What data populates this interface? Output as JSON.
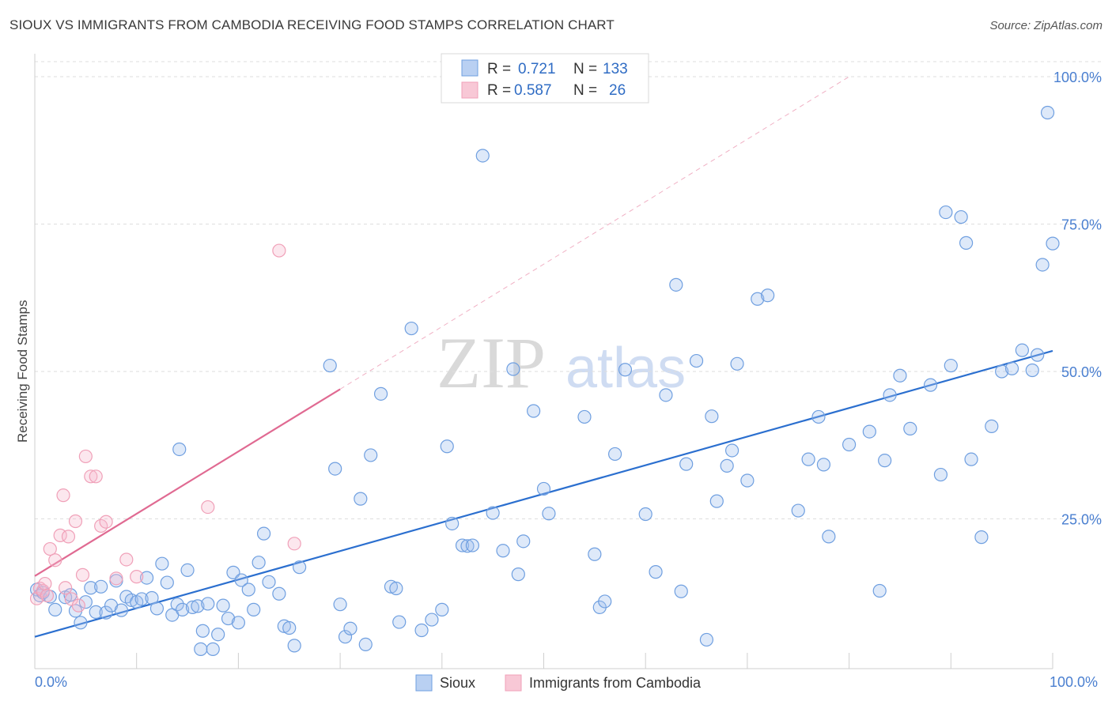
{
  "title": "SIOUX VS IMMIGRANTS FROM CAMBODIA RECEIVING FOOD STAMPS CORRELATION CHART",
  "source": "Source: ZipAtlas.com",
  "watermark": {
    "zip": "ZIP",
    "atlas": "atlas"
  },
  "legend_top": {
    "rows": [
      {
        "r_label": "R =",
        "r_value": "0.721",
        "n_label": "N =",
        "n_value": "133"
      },
      {
        "r_label": "R =",
        "r_value": "0.587",
        "n_label": "N =",
        "n_value": "26"
      }
    ]
  },
  "chart_data": {
    "type": "scatter",
    "title": "SIOUX VS IMMIGRANTS FROM CAMBODIA RECEIVING FOOD STAMPS CORRELATION CHART",
    "xlabel": "",
    "ylabel": "Receiving Food Stamps",
    "xlim": [
      0,
      100
    ],
    "ylim": [
      0,
      100
    ],
    "x_tick_labels": [
      {
        "v": 0,
        "label": "0.0%"
      },
      {
        "v": 100,
        "label": "100.0%"
      }
    ],
    "y_tick_labels": [
      {
        "v": 25,
        "label": "25.0%"
      },
      {
        "v": 50,
        "label": "50.0%"
      },
      {
        "v": 75,
        "label": "75.0%"
      },
      {
        "v": 100,
        "label": "100.0%"
      }
    ],
    "grid": "horizontal dashed",
    "legend_position": "bottom",
    "colors": {
      "sioux": "#6f9fe0",
      "cambodia": "#f0a0b8",
      "sioux_line": "#2b6fcf",
      "cambodia_line": "#e06a92"
    },
    "series": [
      {
        "name": "Sioux",
        "trend": {
          "x0": 0,
          "y0": 5,
          "x1": 100,
          "y1": 53.5
        },
        "points": [
          [
            0.2,
            13
          ],
          [
            0.5,
            12
          ],
          [
            0.8,
            12.5
          ],
          [
            1.5,
            11.8
          ],
          [
            2,
            9.6
          ],
          [
            3,
            11.7
          ],
          [
            3.5,
            12.1
          ],
          [
            4,
            9.4
          ],
          [
            4.5,
            7.4
          ],
          [
            5,
            10.9
          ],
          [
            5.5,
            13.3
          ],
          [
            6,
            9.2
          ],
          [
            6.5,
            13.5
          ],
          [
            7,
            9.1
          ],
          [
            7.5,
            10.3
          ],
          [
            8,
            14.5
          ],
          [
            8.5,
            9.5
          ],
          [
            9,
            11.8
          ],
          [
            9.5,
            11.2
          ],
          [
            10,
            10.9
          ],
          [
            10.5,
            11.4
          ],
          [
            11,
            15
          ],
          [
            11.5,
            11.6
          ],
          [
            12,
            9.8
          ],
          [
            12.5,
            17.4
          ],
          [
            13,
            14.2
          ],
          [
            13.5,
            8.7
          ],
          [
            14,
            10.5
          ],
          [
            14.5,
            9.6
          ],
          [
            14.2,
            36.8
          ],
          [
            15,
            16.3
          ],
          [
            15.5,
            10.0
          ],
          [
            16,
            10.2
          ],
          [
            16.5,
            6.0
          ],
          [
            16.3,
            2.9
          ],
          [
            17,
            10.6
          ],
          [
            17.5,
            2.9
          ],
          [
            18,
            5.4
          ],
          [
            18.5,
            10.3
          ],
          [
            19,
            8.1
          ],
          [
            19.5,
            15.9
          ],
          [
            20,
            7.4
          ],
          [
            20.3,
            14.6
          ],
          [
            21,
            13.0
          ],
          [
            21.5,
            9.6
          ],
          [
            22,
            17.6
          ],
          [
            22.5,
            22.5
          ],
          [
            23,
            14.3
          ],
          [
            24,
            12.3
          ],
          [
            24.5,
            6.8
          ],
          [
            25,
            6.5
          ],
          [
            25.5,
            3.5
          ],
          [
            26,
            16.8
          ],
          [
            29,
            51.0
          ],
          [
            29.5,
            33.5
          ],
          [
            30,
            10.5
          ],
          [
            30.5,
            5.0
          ],
          [
            31,
            6.4
          ],
          [
            32,
            28.4
          ],
          [
            32.5,
            3.7
          ],
          [
            33,
            35.8
          ],
          [
            34,
            46.2
          ],
          [
            35,
            13.5
          ],
          [
            35.5,
            13.2
          ],
          [
            35.8,
            7.5
          ],
          [
            37,
            57.3
          ],
          [
            38,
            6.1
          ],
          [
            39,
            7.9
          ],
          [
            40,
            9.6
          ],
          [
            40.5,
            37.3
          ],
          [
            41,
            24.2
          ],
          [
            42,
            20.5
          ],
          [
            42.5,
            20.4
          ],
          [
            43,
            20.5
          ],
          [
            44,
            86.6
          ],
          [
            45,
            26.0
          ],
          [
            46,
            19.6
          ],
          [
            47,
            50.4
          ],
          [
            47.5,
            15.6
          ],
          [
            48,
            21.2
          ],
          [
            49,
            43.3
          ],
          [
            50,
            30.1
          ],
          [
            50.5,
            25.9
          ],
          [
            54,
            42.3
          ],
          [
            55,
            19.0
          ],
          [
            55.5,
            10.0
          ],
          [
            56,
            11.0
          ],
          [
            57,
            36.0
          ],
          [
            58,
            50.3
          ],
          [
            60,
            25.8
          ],
          [
            61,
            16.0
          ],
          [
            62,
            46.0
          ],
          [
            63,
            64.7
          ],
          [
            63.5,
            12.7
          ],
          [
            64,
            34.3
          ],
          [
            65,
            51.8
          ],
          [
            66,
            4.5
          ],
          [
            66.5,
            42.4
          ],
          [
            67,
            28.0
          ],
          [
            68,
            34.0
          ],
          [
            68.5,
            36.6
          ],
          [
            69,
            51.3
          ],
          [
            70,
            31.5
          ],
          [
            71,
            62.3
          ],
          [
            72,
            62.9
          ],
          [
            75,
            26.4
          ],
          [
            76,
            35.1
          ],
          [
            77,
            42.3
          ],
          [
            77.5,
            34.2
          ],
          [
            78,
            22.0
          ],
          [
            80,
            37.6
          ],
          [
            82,
            39.8
          ],
          [
            83,
            12.8
          ],
          [
            83.5,
            34.9
          ],
          [
            84,
            46.0
          ],
          [
            85,
            49.3
          ],
          [
            86,
            40.3
          ],
          [
            88,
            47.7
          ],
          [
            89,
            32.5
          ],
          [
            89.5,
            77.0
          ],
          [
            90,
            51.0
          ],
          [
            91,
            76.2
          ],
          [
            91.5,
            71.8
          ],
          [
            92,
            35.1
          ],
          [
            93,
            21.9
          ],
          [
            94,
            40.7
          ],
          [
            95,
            50.0
          ],
          [
            96,
            50.5
          ],
          [
            97,
            53.6
          ],
          [
            98,
            50.2
          ],
          [
            98.5,
            52.8
          ],
          [
            99,
            68.1
          ],
          [
            99.5,
            93.9
          ],
          [
            100,
            71.7
          ]
        ]
      },
      {
        "name": "Immigrants from Cambodia",
        "trend": {
          "x0": 0,
          "y0": 15.3,
          "x1": 30,
          "y1": 47.0
        },
        "trend_extension": {
          "x0": 30,
          "y0": 47.0,
          "x1": 80,
          "y1": 100
        },
        "points": [
          [
            0.2,
            11.5
          ],
          [
            0.5,
            13.2
          ],
          [
            0.8,
            12.8
          ],
          [
            1,
            14
          ],
          [
            1.5,
            19.9
          ],
          [
            2,
            18.0
          ],
          [
            2.5,
            22.2
          ],
          [
            2.8,
            29.0
          ],
          [
            3,
            13.3
          ],
          [
            3.3,
            22.0
          ],
          [
            3.6,
            11.4
          ],
          [
            4,
            24.6
          ],
          [
            4.3,
            10.3
          ],
          [
            4.7,
            15.5
          ],
          [
            5,
            35.6
          ],
          [
            5.5,
            32.2
          ],
          [
            6,
            32.2
          ],
          [
            6.5,
            23.8
          ],
          [
            7,
            24.5
          ],
          [
            8,
            14.9
          ],
          [
            9,
            18.1
          ],
          [
            10,
            15.2
          ],
          [
            17,
            27.0
          ],
          [
            24,
            70.5
          ],
          [
            25.5,
            20.8
          ],
          [
            1.2,
            12.0
          ]
        ]
      }
    ]
  }
}
